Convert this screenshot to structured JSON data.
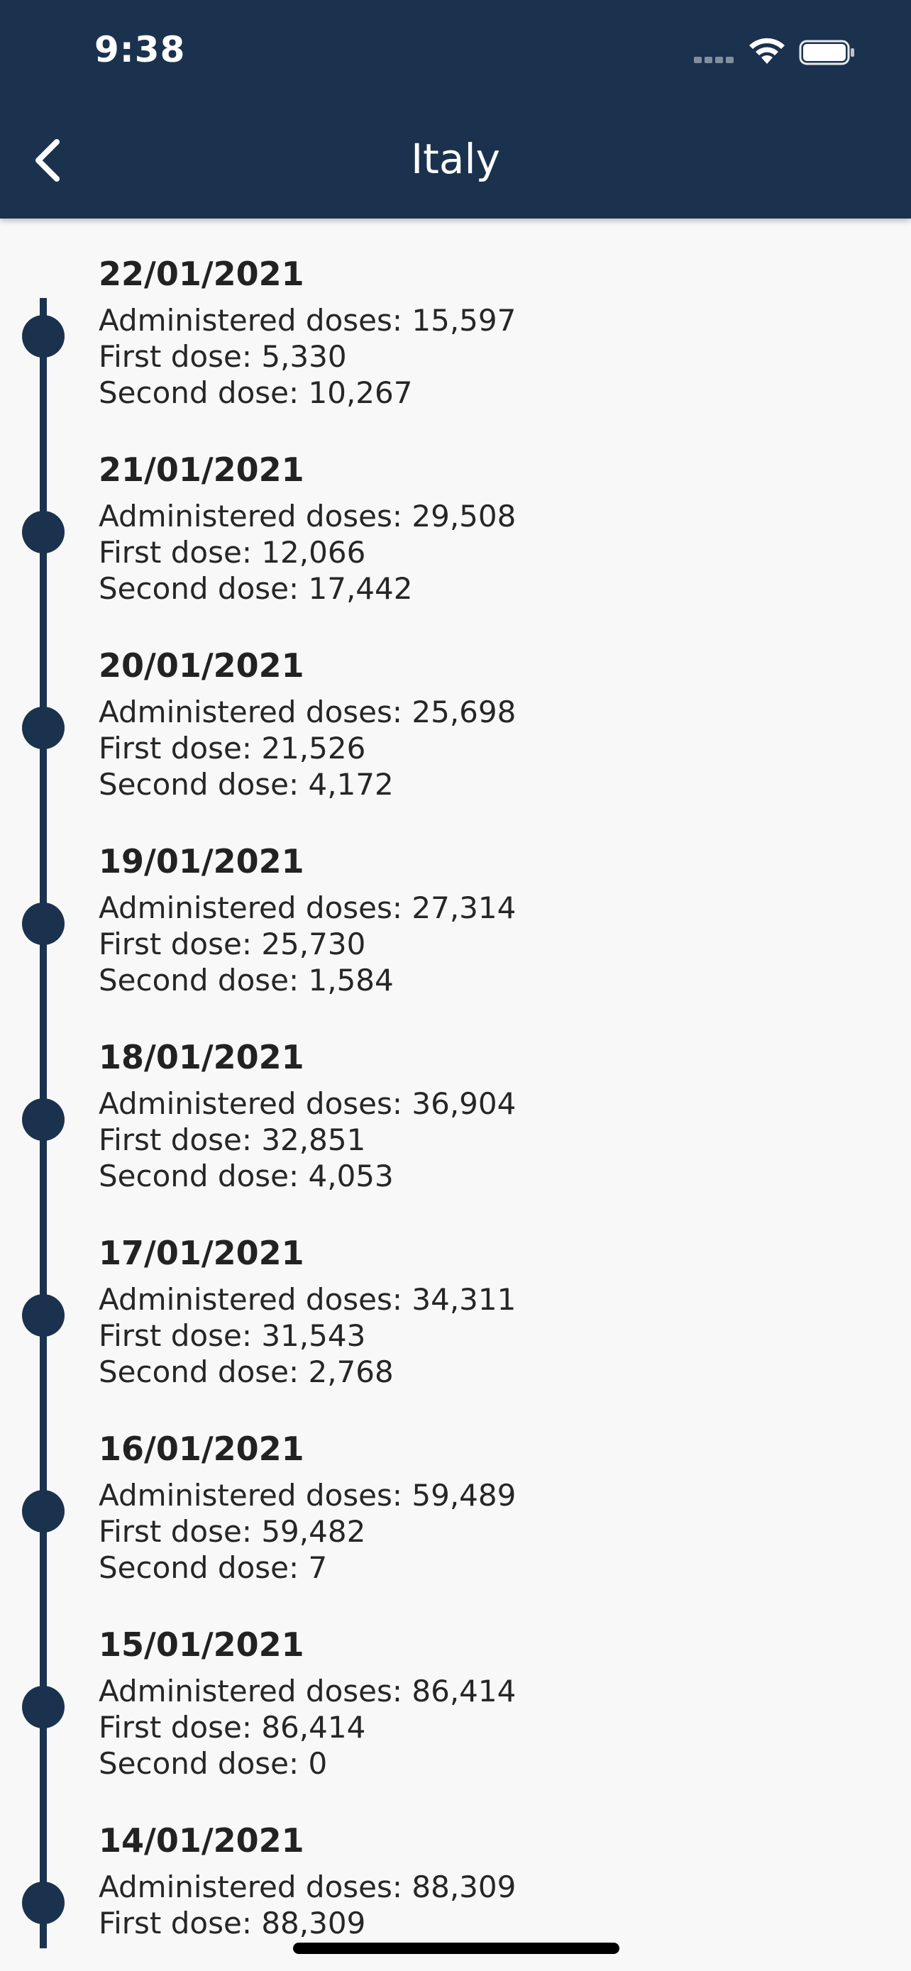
{
  "status_bar": {
    "time": "9:38"
  },
  "nav": {
    "title": "Italy",
    "back_icon": "chevron-left-icon"
  },
  "colors": {
    "header_bg": "#1b324e",
    "timeline": "#1b324e",
    "background": "#f8f8f8"
  },
  "labels": {
    "administered": "Administered doses: ",
    "first": "First dose: ",
    "second": "Second dose: "
  },
  "entries": [
    {
      "date": "22/01/2021",
      "administered": "15,597",
      "first": "5,330",
      "second": "10,267"
    },
    {
      "date": "21/01/2021",
      "administered": "29,508",
      "first": "12,066",
      "second": "17,442"
    },
    {
      "date": "20/01/2021",
      "administered": "25,698",
      "first": "21,526",
      "second": "4,172"
    },
    {
      "date": "19/01/2021",
      "administered": "27,314",
      "first": "25,730",
      "second": "1,584"
    },
    {
      "date": "18/01/2021",
      "administered": "36,904",
      "first": "32,851",
      "second": "4,053"
    },
    {
      "date": "17/01/2021",
      "administered": "34,311",
      "first": "31,543",
      "second": "2,768"
    },
    {
      "date": "16/01/2021",
      "administered": "59,489",
      "first": "59,482",
      "second": "7"
    },
    {
      "date": "15/01/2021",
      "administered": "86,414",
      "first": "86,414",
      "second": "0"
    },
    {
      "date": "14/01/2021",
      "administered": "88,309",
      "first": "88,309"
    }
  ]
}
